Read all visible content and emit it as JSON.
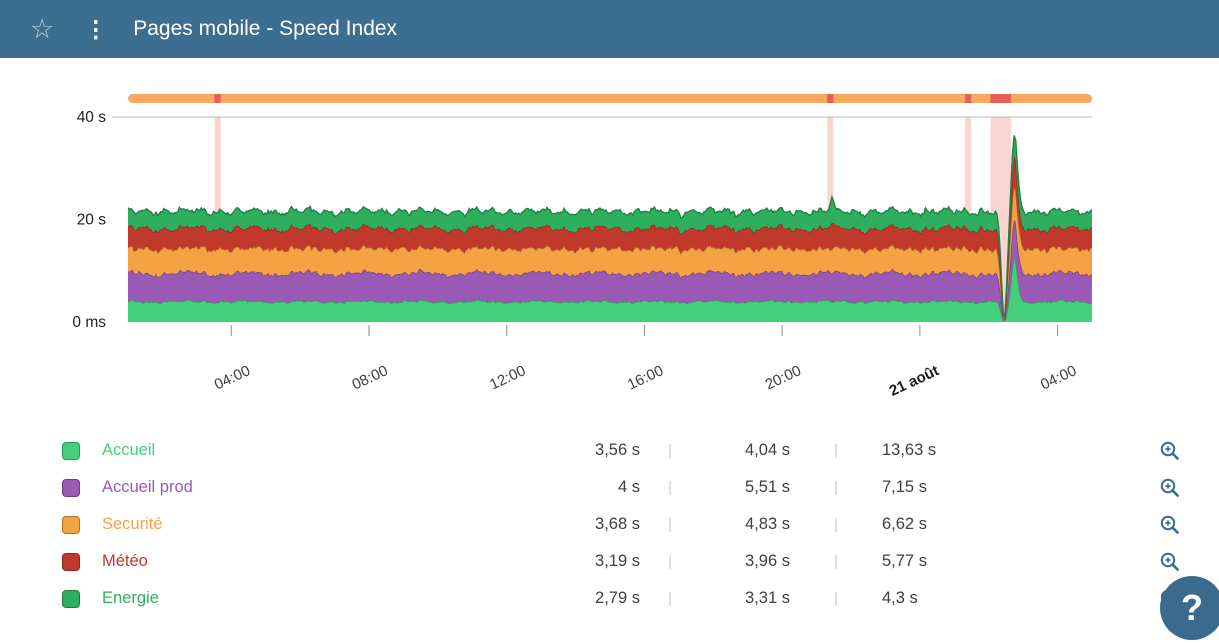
{
  "header": {
    "title": "Pages mobile - Speed Index"
  },
  "icons": {
    "star": "☆",
    "menu": "⋮",
    "help": "?"
  },
  "legend": {
    "divider": "|"
  },
  "chart_data": {
    "type": "area",
    "variant": "stacked-stream",
    "title": "Pages mobile - Speed Index",
    "x_ticks": [
      "04:00",
      "08:00",
      "12:00",
      "16:00",
      "20:00",
      "21 août",
      "04:00"
    ],
    "x_tick_hours": [
      3,
      7,
      11,
      15,
      19,
      23,
      27
    ],
    "x_span_hours": 28,
    "y_ticks": [
      "0 ms",
      "20 s",
      "40 s"
    ],
    "y_tick_values": [
      0,
      20,
      40
    ],
    "ylim": [
      0,
      40
    ],
    "grid": "top-line-only",
    "legend_position": "bottom",
    "status_bar_color": "#f7a95f",
    "incident_color": "#e85f57",
    "anomaly_band_color": "#f07f76",
    "series": [
      {
        "name": "Accueil",
        "color": "#44d07b",
        "base": 4.0,
        "max": 13.63,
        "stats": [
          "3,56 s",
          "4,04 s",
          "13,63 s"
        ]
      },
      {
        "name": "Accueil prod",
        "color": "#9b59b6",
        "base": 5.5,
        "max": 7.15,
        "stats": [
          "4 s",
          "5,51 s",
          "7,15 s"
        ]
      },
      {
        "name": "Securité",
        "color": "#f5a243",
        "base": 4.8,
        "max": 6.62,
        "stats": [
          "3,68 s",
          "4,83 s",
          "6,62 s"
        ]
      },
      {
        "name": "Météo",
        "color": "#c0392b",
        "base": 3.95,
        "max": 5.77,
        "stats": [
          "3,19 s",
          "3,96 s",
          "5,77 s"
        ]
      },
      {
        "name": "Energie",
        "color": "#2eaf5f",
        "base": 3.3,
        "max": 4.3,
        "stats": [
          "2,79 s",
          "3,31 s",
          "4,3 s"
        ]
      }
    ],
    "anomaly_bands_hours": [
      {
        "t": 2.6,
        "w": 0.18
      },
      {
        "t": 20.4,
        "w": 0.18
      },
      {
        "t": 24.4,
        "w": 0.18
      },
      {
        "t": 25.35,
        "w": 0.6
      }
    ],
    "events": {
      "outage_dip_hour": 25.45,
      "spike_hour": 25.75,
      "minor_spike_hour": 20.45
    }
  }
}
